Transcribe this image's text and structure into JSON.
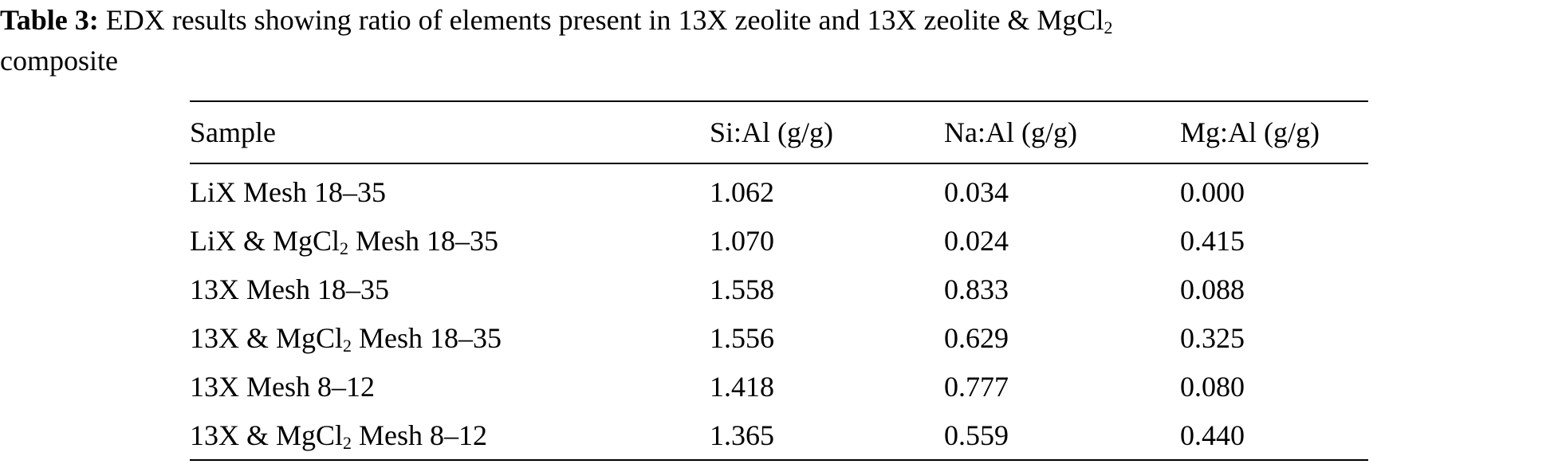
{
  "caption": {
    "label": "Table 3:",
    "text_line1": " EDX results showing ratio of elements present in 13X zeolite and 13X zeolite & MgCl",
    "subscript": "2",
    "text_line2": "composite"
  },
  "table": {
    "headers": [
      "Sample",
      "Si:Al (g/g)",
      "Na:Al (g/g)",
      "Mg:Al (g/g)"
    ],
    "rows": [
      {
        "sample_prefix": "LiX Mesh 18–35",
        "sample_sub": "",
        "sample_suffix": "",
        "si_al": "1.062",
        "na_al": "0.034",
        "mg_al": "0.000"
      },
      {
        "sample_prefix": "LiX & MgCl",
        "sample_sub": "2",
        "sample_suffix": " Mesh 18–35",
        "si_al": "1.070",
        "na_al": "0.024",
        "mg_al": "0.415"
      },
      {
        "sample_prefix": "13X Mesh 18–35",
        "sample_sub": "",
        "sample_suffix": "",
        "si_al": "1.558",
        "na_al": "0.833",
        "mg_al": "0.088"
      },
      {
        "sample_prefix": "13X & MgCl",
        "sample_sub": "2",
        "sample_suffix": " Mesh 18–35",
        "si_al": "1.556",
        "na_al": "0.629",
        "mg_al": "0.325"
      },
      {
        "sample_prefix": "13X Mesh 8–12",
        "sample_sub": "",
        "sample_suffix": "",
        "si_al": "1.418",
        "na_al": "0.777",
        "mg_al": "0.080"
      },
      {
        "sample_prefix": "13X & MgCl",
        "sample_sub": "2",
        "sample_suffix": " Mesh 8–12",
        "si_al": "1.365",
        "na_al": "0.559",
        "mg_al": "0.440"
      }
    ]
  }
}
